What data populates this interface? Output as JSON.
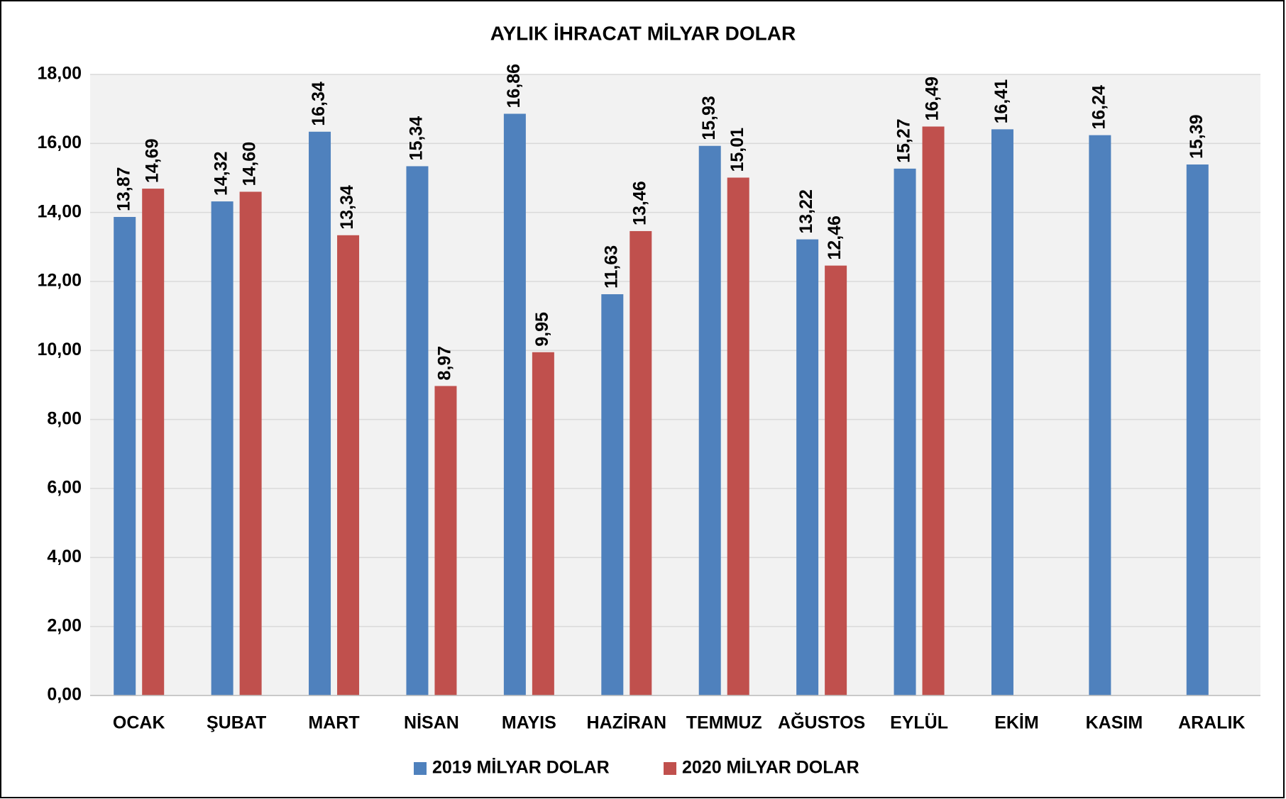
{
  "chart_data": {
    "type": "bar",
    "title": "AYLIK İHRACAT MİLYAR DOLAR",
    "categories": [
      "OCAK",
      "ŞUBAT",
      "MART",
      "NİSAN",
      "MAYIS",
      "HAZİRAN",
      "TEMMUZ",
      "AĞUSTOS",
      "EYLÜL",
      "EKİM",
      "KASIM",
      "ARALIK"
    ],
    "series": [
      {
        "name": "2019 MİLYAR DOLAR",
        "color": "#4f81bd",
        "values": [
          13.87,
          14.32,
          16.34,
          15.34,
          16.86,
          11.63,
          15.93,
          13.22,
          15.27,
          16.41,
          16.24,
          15.39
        ],
        "value_labels": [
          "13,87",
          "14,32",
          "16,34",
          "15,34",
          "16,86",
          "11,63",
          "15,93",
          "13,22",
          "15,27",
          "16,41",
          "16,24",
          "15,39"
        ]
      },
      {
        "name": "2020 MİLYAR DOLAR",
        "color": "#c0504d",
        "values": [
          14.69,
          14.6,
          13.34,
          8.97,
          9.95,
          13.46,
          15.01,
          12.46,
          16.49,
          null,
          null,
          null
        ],
        "value_labels": [
          "14,69",
          "14,60",
          "13,34",
          "8,97",
          "9,95",
          "13,46",
          "15,01",
          "12,46",
          "16,49",
          null,
          null,
          null
        ]
      }
    ],
    "ylim": [
      0,
      18
    ],
    "yticks": [
      {
        "value": 0,
        "label": "0,00"
      },
      {
        "value": 2,
        "label": "2,00"
      },
      {
        "value": 4,
        "label": "4,00"
      },
      {
        "value": 6,
        "label": "6,00"
      },
      {
        "value": 8,
        "label": "8,00"
      },
      {
        "value": 10,
        "label": "10,00"
      },
      {
        "value": 12,
        "label": "12,00"
      },
      {
        "value": 14,
        "label": "14,00"
      },
      {
        "value": 16,
        "label": "16,00"
      },
      {
        "value": 18,
        "label": "18,00"
      }
    ],
    "grid": true,
    "legend": "bottom"
  }
}
